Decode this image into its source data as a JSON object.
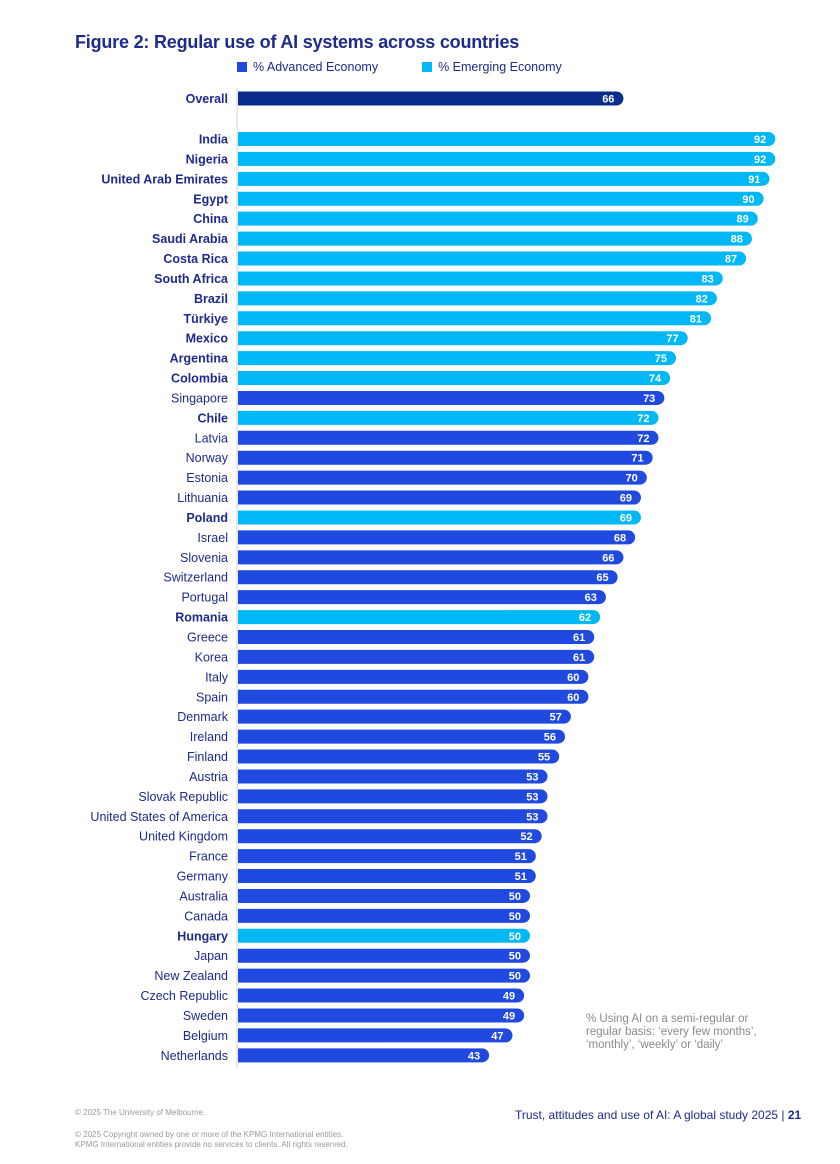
{
  "colors": {
    "advanced": "#1f49df",
    "emerging": "#00b8f5",
    "overall": "#0b2d8c",
    "label_text": "#1e2a8c",
    "axis": "#d0d0d0"
  },
  "chart_data": {
    "type": "bar",
    "orientation": "horizontal",
    "title": "Figure 2: Regular use of AI systems across countries",
    "xlabel": "",
    "ylabel": "",
    "xlim": [
      0,
      100
    ],
    "grid": false,
    "legend_position": "top",
    "legend": [
      {
        "name": "% Advanced Economy",
        "key": "advanced"
      },
      {
        "name": "% Emerging Economy",
        "key": "emerging"
      }
    ],
    "overall": {
      "label": "Overall",
      "value": 66
    },
    "categories": [
      "India",
      "Nigeria",
      "United Arab Emirates",
      "Egypt",
      "China",
      "Saudi Arabia",
      "Costa Rica",
      "South Africa",
      "Brazil",
      "Türkiye",
      "Mexico",
      "Argentina",
      "Colombia",
      "Singapore",
      "Chile",
      "Latvia",
      "Norway",
      "Estonia",
      "Lithuania",
      "Poland",
      "Israel",
      "Slovenia",
      "Switzerland",
      "Portugal",
      "Romania",
      "Greece",
      "Korea",
      "Italy",
      "Spain",
      "Denmark",
      "Ireland",
      "Finland",
      "Austria",
      "Slovak Republic",
      "United States of America",
      "United Kingdom",
      "France",
      "Germany",
      "Australia",
      "Canada",
      "Hungary",
      "Japan",
      "New Zealand",
      "Czech Republic",
      "Sweden",
      "Belgium",
      "Netherlands"
    ],
    "values": [
      92,
      92,
      91,
      90,
      89,
      88,
      87,
      83,
      82,
      81,
      77,
      75,
      74,
      73,
      72,
      72,
      71,
      70,
      69,
      69,
      68,
      66,
      65,
      63,
      62,
      61,
      61,
      60,
      60,
      57,
      56,
      55,
      53,
      53,
      53,
      52,
      51,
      51,
      50,
      50,
      50,
      50,
      50,
      49,
      49,
      47,
      43
    ],
    "economy": [
      "emerging",
      "emerging",
      "emerging",
      "emerging",
      "emerging",
      "emerging",
      "emerging",
      "emerging",
      "emerging",
      "emerging",
      "emerging",
      "emerging",
      "emerging",
      "advanced",
      "emerging",
      "advanced",
      "advanced",
      "advanced",
      "advanced",
      "emerging",
      "advanced",
      "advanced",
      "advanced",
      "advanced",
      "emerging",
      "advanced",
      "advanced",
      "advanced",
      "advanced",
      "advanced",
      "advanced",
      "advanced",
      "advanced",
      "advanced",
      "advanced",
      "advanced",
      "advanced",
      "advanced",
      "advanced",
      "advanced",
      "emerging",
      "advanced",
      "advanced",
      "advanced",
      "advanced",
      "advanced",
      "advanced"
    ],
    "annotation": "% Using AI on a semi-regular or regular basis: ‘every few months’, ‘monthly’, ‘weekly’ or ‘daily’"
  },
  "footer": {
    "copyright_1": "© 2025 The University of Melbourne.",
    "copyright_2": "© 2025 Copyright owned by one or more of the KPMG International entities.",
    "copyright_3": "KPMG International entities provide no services to clients. All rights reserved.",
    "report_title": "Trust, attitudes and use of AI: A global study 2025 | ",
    "page_number": "21"
  }
}
